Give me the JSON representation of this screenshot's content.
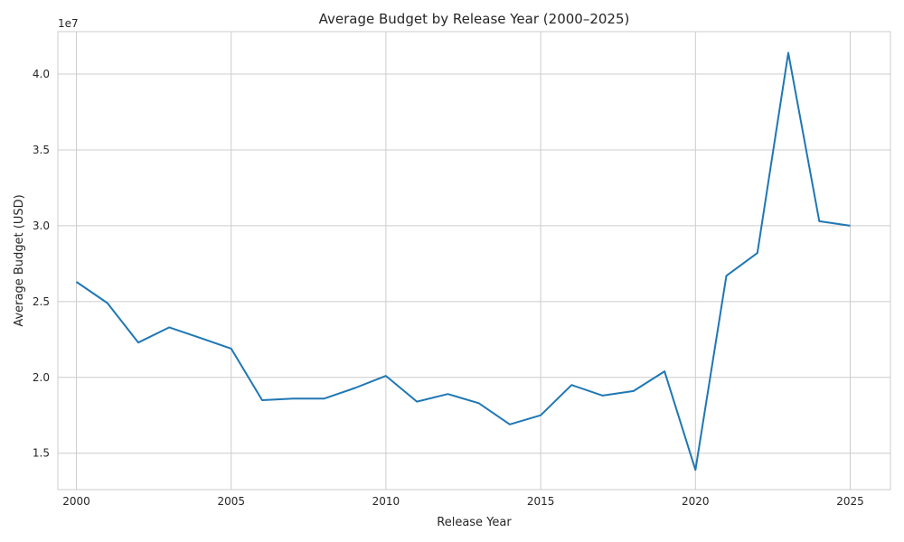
{
  "chart_data": {
    "type": "line",
    "title": "Average Budget by Release Year (2000–2025)",
    "xlabel": "Release Year",
    "ylabel": "Average Budget (USD)",
    "y_offset_text": "1e7",
    "x_ticks": [
      "2000",
      "2005",
      "2010",
      "2015",
      "2020",
      "2025"
    ],
    "y_ticks": [
      "1.5",
      "2.0",
      "2.5",
      "3.0",
      "3.5",
      "4.0"
    ],
    "xlim": [
      1999.4,
      2026.3
    ],
    "ylim": [
      12600000,
      42800000
    ],
    "grid": true,
    "series": [
      {
        "color": "#1f77b4",
        "x": [
          2000,
          2001,
          2002,
          2003,
          2004,
          2005,
          2006,
          2007,
          2008,
          2009,
          2010,
          2011,
          2012,
          2013,
          2014,
          2015,
          2016,
          2017,
          2018,
          2019,
          2020,
          2021,
          2022,
          2023,
          2024,
          2025
        ],
        "y": [
          26300000,
          24900000,
          22300000,
          23300000,
          22600000,
          21900000,
          18500000,
          18600000,
          18600000,
          19300000,
          20100000,
          18400000,
          18900000,
          18300000,
          16900000,
          17500000,
          19500000,
          18800000,
          19100000,
          20400000,
          13900000,
          26700000,
          28200000,
          41400000,
          30300000,
          30000000
        ]
      }
    ]
  }
}
